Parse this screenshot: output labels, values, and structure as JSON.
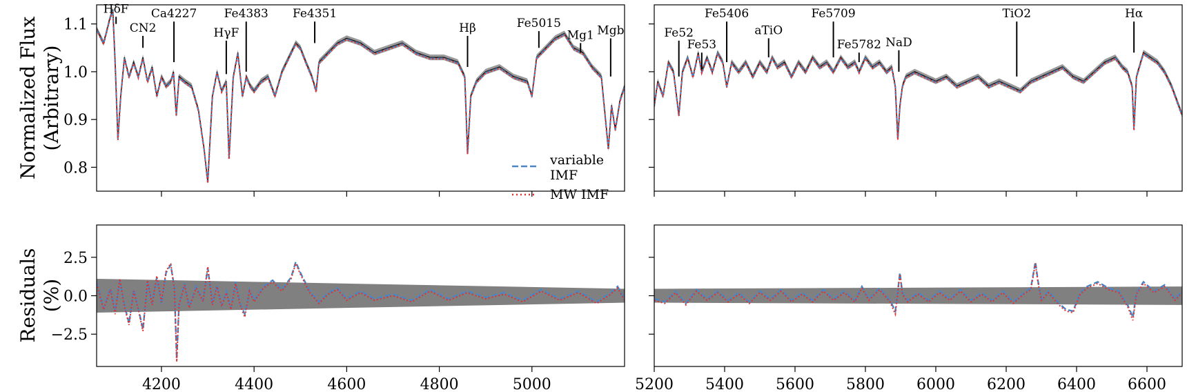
{
  "chart_data": [
    {
      "type": "line",
      "panel": "top-left",
      "ylabel": "Normalized Flux\n(Arbitrary)",
      "xlim": [
        4060,
        5200
      ],
      "ylim": [
        0.75,
        1.14
      ],
      "yticks": [
        0.8,
        0.9,
        1.0,
        1.1
      ],
      "xticks": [
        4200,
        4400,
        4600,
        4800,
        5000
      ],
      "xticklabels_visible": false,
      "series": [
        {
          "name": "variable\nIMF",
          "color": "#4a86c5",
          "style": "dashed"
        },
        {
          "name": "MW IMF",
          "color": "#e03030",
          "style": "dotted"
        }
      ],
      "legend": "lower-right",
      "spectrum_x": [
        4060,
        4075,
        4088,
        4095,
        4100,
        4106,
        4112,
        4120,
        4130,
        4140,
        4150,
        4160,
        4170,
        4180,
        4190,
        4200,
        4210,
        4220,
        4226,
        4232,
        4238,
        4250,
        4265,
        4280,
        4292,
        4300,
        4310,
        4320,
        4330,
        4340,
        4346,
        4355,
        4365,
        4375,
        4383,
        4392,
        4400,
        4415,
        4430,
        4445,
        4460,
        4475,
        4490,
        4500,
        4512,
        4525,
        4534,
        4540,
        4560,
        4580,
        4600,
        4630,
        4660,
        4690,
        4720,
        4750,
        4780,
        4810,
        4840,
        4855,
        4861,
        4868,
        4880,
        4900,
        4930,
        4960,
        4990,
        5000,
        5010,
        5030,
        5050,
        5070,
        5090,
        5110,
        5130,
        5150,
        5165,
        5172,
        5180,
        5190,
        5200
      ],
      "spectrum_y": [
        1.09,
        1.06,
        1.11,
        1.13,
        1.02,
        0.86,
        0.95,
        1.03,
        0.99,
        1.02,
        0.99,
        1.03,
        0.98,
        1.01,
        0.95,
        0.99,
        0.97,
        0.98,
        1.0,
        0.91,
        0.99,
        0.98,
        0.97,
        0.92,
        0.84,
        0.77,
        0.95,
        1.0,
        0.96,
        0.98,
        0.82,
        0.99,
        1.04,
        0.95,
        0.99,
        0.97,
        0.96,
        0.98,
        0.99,
        0.95,
        1.0,
        1.03,
        1.06,
        1.05,
        1.02,
        0.99,
        0.96,
        1.02,
        1.04,
        1.06,
        1.07,
        1.06,
        1.04,
        1.05,
        1.06,
        1.04,
        1.03,
        1.03,
        1.02,
        0.99,
        0.83,
        0.95,
        0.98,
        1.0,
        1.01,
        0.99,
        0.98,
        0.95,
        1.03,
        1.05,
        1.07,
        1.08,
        1.05,
        1.04,
        1.01,
        0.99,
        0.84,
        0.93,
        0.88,
        0.94,
        0.97
      ],
      "annotations": [
        {
          "label": "HδF",
          "x": 4102,
          "y_top": 1.115,
          "y_bottom": 1.1
        },
        {
          "label": "CN2",
          "x": 4160,
          "y_top": 1.075,
          "y_bottom": 1.05
        },
        {
          "label": "Ca4227",
          "x": 4227,
          "y_top": 1.105,
          "y_bottom": 1.02
        },
        {
          "label": "HγF",
          "x": 4340,
          "y_top": 1.065,
          "y_bottom": 0.995
        },
        {
          "label": "Fe4383",
          "x": 4383,
          "y_top": 1.105,
          "y_bottom": 1.0
        },
        {
          "label": "Fe4351",
          "x": 4531,
          "y_top": 1.105,
          "y_bottom": 1.06
        },
        {
          "label": "Hβ",
          "x": 4861,
          "y_top": 1.075,
          "y_bottom": 1.01
        },
        {
          "label": "Fe5015",
          "x": 5015,
          "y_top": 1.085,
          "y_bottom": 1.05
        },
        {
          "label": "Mg1",
          "x": 5105,
          "y_top": 1.06,
          "y_bottom": 1.04
        },
        {
          "label": "Mgb",
          "x": 5170,
          "y_top": 1.07,
          "y_bottom": 0.99
        }
      ]
    },
    {
      "type": "line",
      "panel": "top-right",
      "xlim": [
        5200,
        6700
      ],
      "ylim": [
        0.75,
        1.14
      ],
      "yticks": [
        0.8,
        0.9,
        1.0,
        1.1
      ],
      "yticklabels_visible": false,
      "xticks": [
        5200,
        5400,
        5600,
        5800,
        6000,
        6200,
        6400,
        6600
      ],
      "xticklabels_visible": false,
      "spectrum_x": [
        5200,
        5210,
        5225,
        5240,
        5255,
        5270,
        5280,
        5295,
        5310,
        5325,
        5335,
        5350,
        5365,
        5380,
        5395,
        5406,
        5420,
        5440,
        5460,
        5480,
        5500,
        5520,
        5535,
        5550,
        5570,
        5590,
        5610,
        5630,
        5650,
        5670,
        5690,
        5709,
        5730,
        5750,
        5770,
        5782,
        5800,
        5820,
        5840,
        5860,
        5875,
        5885,
        5892,
        5898,
        5905,
        5915,
        5940,
        5970,
        6000,
        6030,
        6060,
        6090,
        6120,
        6150,
        6180,
        6210,
        6240,
        6270,
        6300,
        6330,
        6360,
        6390,
        6420,
        6450,
        6480,
        6510,
        6530,
        6545,
        6558,
        6563,
        6570,
        6590,
        6610,
        6630,
        6650,
        6670,
        6690,
        6700
      ],
      "spectrum_y": [
        0.93,
        0.98,
        0.95,
        1.02,
        1.0,
        0.91,
        1.0,
        1.03,
        0.99,
        1.04,
        1.0,
        1.03,
        1.0,
        1.04,
        1.02,
        0.97,
        1.02,
        1.0,
        1.02,
        0.99,
        1.02,
        1.0,
        1.03,
        1.01,
        1.02,
        0.99,
        1.02,
        1.0,
        1.03,
        1.01,
        1.02,
        1.0,
        1.03,
        1.01,
        1.02,
        1.0,
        1.03,
        1.01,
        1.02,
        1.0,
        1.01,
        0.97,
        0.86,
        0.93,
        0.97,
        0.99,
        1.0,
        0.99,
        0.98,
        0.99,
        0.97,
        0.98,
        0.99,
        0.97,
        0.98,
        0.97,
        0.96,
        0.98,
        0.99,
        1.0,
        1.01,
        0.99,
        0.98,
        1.0,
        1.02,
        1.03,
        1.01,
        1.0,
        0.97,
        0.88,
        0.99,
        1.04,
        1.03,
        1.02,
        1.0,
        0.97,
        0.93,
        0.91
      ],
      "annotations": [
        {
          "label": "Fe52",
          "x": 5270,
          "y_top": 1.065,
          "y_bottom": 0.99
        },
        {
          "label": "Fe53",
          "x": 5335,
          "y_top": 1.04,
          "y_bottom": 1.005
        },
        {
          "label": "Fe5406",
          "x": 5406,
          "y_top": 1.105,
          "y_bottom": 1.02
        },
        {
          "label": "aTiO",
          "x": 5525,
          "y_top": 1.07,
          "y_bottom": 1.03
        },
        {
          "label": "Fe5709",
          "x": 5709,
          "y_top": 1.105,
          "y_bottom": 1.03
        },
        {
          "label": "Fe5782",
          "x": 5782,
          "y_top": 1.04,
          "y_bottom": 1.02
        },
        {
          "label": "NaD",
          "x": 5895,
          "y_top": 1.045,
          "y_bottom": 1.0
        },
        {
          "label": "TiO2",
          "x": 6230,
          "y_top": 1.105,
          "y_bottom": 0.99
        },
        {
          "label": "Hα",
          "x": 6563,
          "y_top": 1.105,
          "y_bottom": 1.04
        }
      ]
    },
    {
      "type": "line",
      "panel": "bottom-left",
      "ylabel": "Residuals\n(%)",
      "xlim": [
        4060,
        5200
      ],
      "ylim": [
        -4.6,
        4.6
      ],
      "yticks": [
        -2.5,
        0.0,
        2.5
      ],
      "yticklabels": [
        "−2.5",
        "0.0",
        "2.5"
      ],
      "xticks": [
        4200,
        4400,
        4600,
        4800,
        5000
      ],
      "xticklabels": [
        "4200",
        "4400",
        "4600",
        "4800",
        "5000"
      ],
      "band_x": [
        4060,
        5200
      ],
      "band_half_width": [
        1.1,
        0.45
      ],
      "series": [
        {
          "name": "variable IMF",
          "x": [
            4060,
            4075,
            4090,
            4100,
            4110,
            4120,
            4130,
            4140,
            4150,
            4160,
            4170,
            4180,
            4190,
            4200,
            4210,
            4220,
            4228,
            4233,
            4238,
            4250,
            4260,
            4275,
            4290,
            4300,
            4310,
            4320,
            4330,
            4340,
            4350,
            4360,
            4370,
            4380,
            4390,
            4400,
            4420,
            4440,
            4460,
            4480,
            4490,
            4500,
            4520,
            4540,
            4560,
            4580,
            4600,
            4630,
            4660,
            4700,
            4740,
            4780,
            4820,
            4860,
            4900,
            4940,
            4980,
            5020,
            5060,
            5100,
            5140,
            5170,
            5185,
            5200
          ],
          "y": [
            0.9,
            -0.8,
            0.5,
            -1.0,
            1.0,
            -0.6,
            -1.8,
            0.4,
            -0.8,
            -2.2,
            0.9,
            -0.5,
            1.2,
            -0.5,
            1.5,
            2.0,
            0.5,
            -4.1,
            -0.5,
            0.8,
            -0.7,
            0.6,
            -0.3,
            1.8,
            -0.5,
            0.7,
            -0.6,
            0.3,
            -0.8,
            0.9,
            -0.5,
            -1.2,
            0.4,
            -0.3,
            0.6,
            1.0,
            0.4,
            1.2,
            2.2,
            1.5,
            0.3,
            -0.4,
            0.2,
            0.5,
            -0.2,
            0.3,
            -0.2,
            0.1,
            -0.3,
            0.4,
            -0.2,
            0.3,
            -0.1,
            0.2,
            -0.3,
            0.4,
            -0.2,
            0.3,
            -0.4,
            0.2,
            0.6,
            -0.2
          ]
        },
        {
          "name": "MW IMF",
          "x": [
            4060,
            4075,
            4090,
            4100,
            4110,
            4120,
            4130,
            4140,
            4150,
            4160,
            4170,
            4180,
            4190,
            4200,
            4210,
            4220,
            4228,
            4233,
            4238,
            4250,
            4260,
            4275,
            4290,
            4300,
            4310,
            4320,
            4330,
            4340,
            4350,
            4360,
            4370,
            4380,
            4390,
            4400,
            4420,
            4440,
            4460,
            4480,
            4490,
            4500,
            4520,
            4540,
            4560,
            4580,
            4600,
            4630,
            4660,
            4700,
            4740,
            4780,
            4820,
            4860,
            4900,
            4940,
            4980,
            5020,
            5060,
            5100,
            5140,
            5170,
            5185,
            5200
          ],
          "y": [
            0.8,
            -0.9,
            0.4,
            -1.2,
            1.1,
            -0.7,
            -1.9,
            0.3,
            -0.9,
            -2.3,
            1.0,
            -0.6,
            1.3,
            -0.4,
            1.6,
            2.1,
            0.4,
            -4.3,
            -0.6,
            0.7,
            -0.8,
            0.5,
            -0.4,
            1.9,
            -0.6,
            0.6,
            -0.7,
            0.2,
            -0.9,
            0.8,
            -0.6,
            -1.4,
            0.3,
            -0.4,
            0.5,
            0.9,
            0.3,
            1.1,
            2.1,
            1.4,
            0.2,
            -0.5,
            0.1,
            0.4,
            -0.3,
            0.2,
            -0.3,
            0.0,
            -0.4,
            0.3,
            -0.3,
            0.2,
            -0.2,
            0.1,
            -0.4,
            0.3,
            -0.3,
            0.2,
            -0.5,
            0.1,
            0.5,
            -0.3
          ]
        }
      ]
    },
    {
      "type": "line",
      "panel": "bottom-right",
      "xlim": [
        5200,
        6700
      ],
      "ylim": [
        -4.6,
        4.6
      ],
      "yticks": [
        -2.5,
        0.0,
        2.5
      ],
      "yticklabels_visible": false,
      "xticks": [
        5200,
        5400,
        5600,
        5800,
        6000,
        6200,
        6400,
        6600
      ],
      "xticklabels": [
        "5200",
        "5400",
        "5600",
        "5800",
        "6000",
        "6200",
        "6400",
        "6600"
      ],
      "band_x": [
        5200,
        6700
      ],
      "band_half_width": [
        0.45,
        0.6
      ],
      "series": [
        {
          "name": "variable IMF",
          "x": [
            5200,
            5230,
            5260,
            5290,
            5320,
            5350,
            5380,
            5410,
            5440,
            5470,
            5500,
            5530,
            5560,
            5590,
            5620,
            5650,
            5680,
            5710,
            5740,
            5770,
            5790,
            5810,
            5840,
            5870,
            5885,
            5892,
            5898,
            5905,
            5920,
            5950,
            5980,
            6010,
            6040,
            6070,
            6100,
            6130,
            6160,
            6190,
            6220,
            6250,
            6270,
            6283,
            6290,
            6300,
            6320,
            6350,
            6370,
            6390,
            6410,
            6430,
            6460,
            6490,
            6520,
            6545,
            6560,
            6570,
            6590,
            6620,
            6650,
            6680,
            6700
          ],
          "y": [
            -0.2,
            -0.4,
            0.3,
            -0.5,
            0.4,
            -0.2,
            0.3,
            -0.3,
            0.2,
            -0.4,
            0.3,
            -0.2,
            0.4,
            -0.3,
            0.2,
            -0.3,
            0.4,
            -0.2,
            0.3,
            -0.3,
            0.6,
            -0.2,
            0.5,
            -0.3,
            -1.0,
            0.3,
            1.5,
            0.2,
            -0.3,
            0.2,
            -0.3,
            0.3,
            -0.2,
            0.4,
            -0.3,
            0.2,
            -0.3,
            0.3,
            -0.4,
            0.2,
            0.5,
            2.2,
            1.0,
            -0.2,
            0.3,
            -0.5,
            -0.9,
            -1.0,
            0.2,
            0.6,
            0.9,
            0.5,
            0.3,
            -0.6,
            -1.4,
            0.2,
            0.9,
            0.3,
            0.7,
            -0.2,
            0.3
          ]
        },
        {
          "name": "MW IMF",
          "x": [
            5200,
            5230,
            5260,
            5290,
            5320,
            5350,
            5380,
            5410,
            5440,
            5470,
            5500,
            5530,
            5560,
            5590,
            5620,
            5650,
            5680,
            5710,
            5740,
            5770,
            5790,
            5810,
            5840,
            5870,
            5885,
            5892,
            5898,
            5905,
            5920,
            5950,
            5980,
            6010,
            6040,
            6070,
            6100,
            6130,
            6160,
            6190,
            6220,
            6250,
            6270,
            6283,
            6290,
            6300,
            6320,
            6350,
            6370,
            6390,
            6410,
            6430,
            6460,
            6490,
            6520,
            6545,
            6560,
            6570,
            6590,
            6620,
            6650,
            6680,
            6700
          ],
          "y": [
            -0.3,
            -0.5,
            0.2,
            -0.6,
            0.3,
            -0.3,
            0.2,
            -0.4,
            0.1,
            -0.5,
            0.2,
            -0.3,
            0.3,
            -0.4,
            0.1,
            -0.4,
            0.3,
            -0.3,
            0.2,
            -0.4,
            0.5,
            -0.3,
            0.4,
            -0.4,
            -1.2,
            0.2,
            1.4,
            0.1,
            -0.4,
            0.1,
            -0.4,
            0.2,
            -0.3,
            0.3,
            -0.4,
            0.1,
            -0.4,
            0.2,
            -0.5,
            0.1,
            0.4,
            2.1,
            0.9,
            -0.3,
            0.2,
            -0.6,
            -1.0,
            -1.1,
            0.1,
            0.5,
            0.8,
            0.4,
            0.2,
            -0.7,
            -1.6,
            0.1,
            0.8,
            0.2,
            0.6,
            -0.3,
            0.2
          ]
        }
      ]
    }
  ]
}
